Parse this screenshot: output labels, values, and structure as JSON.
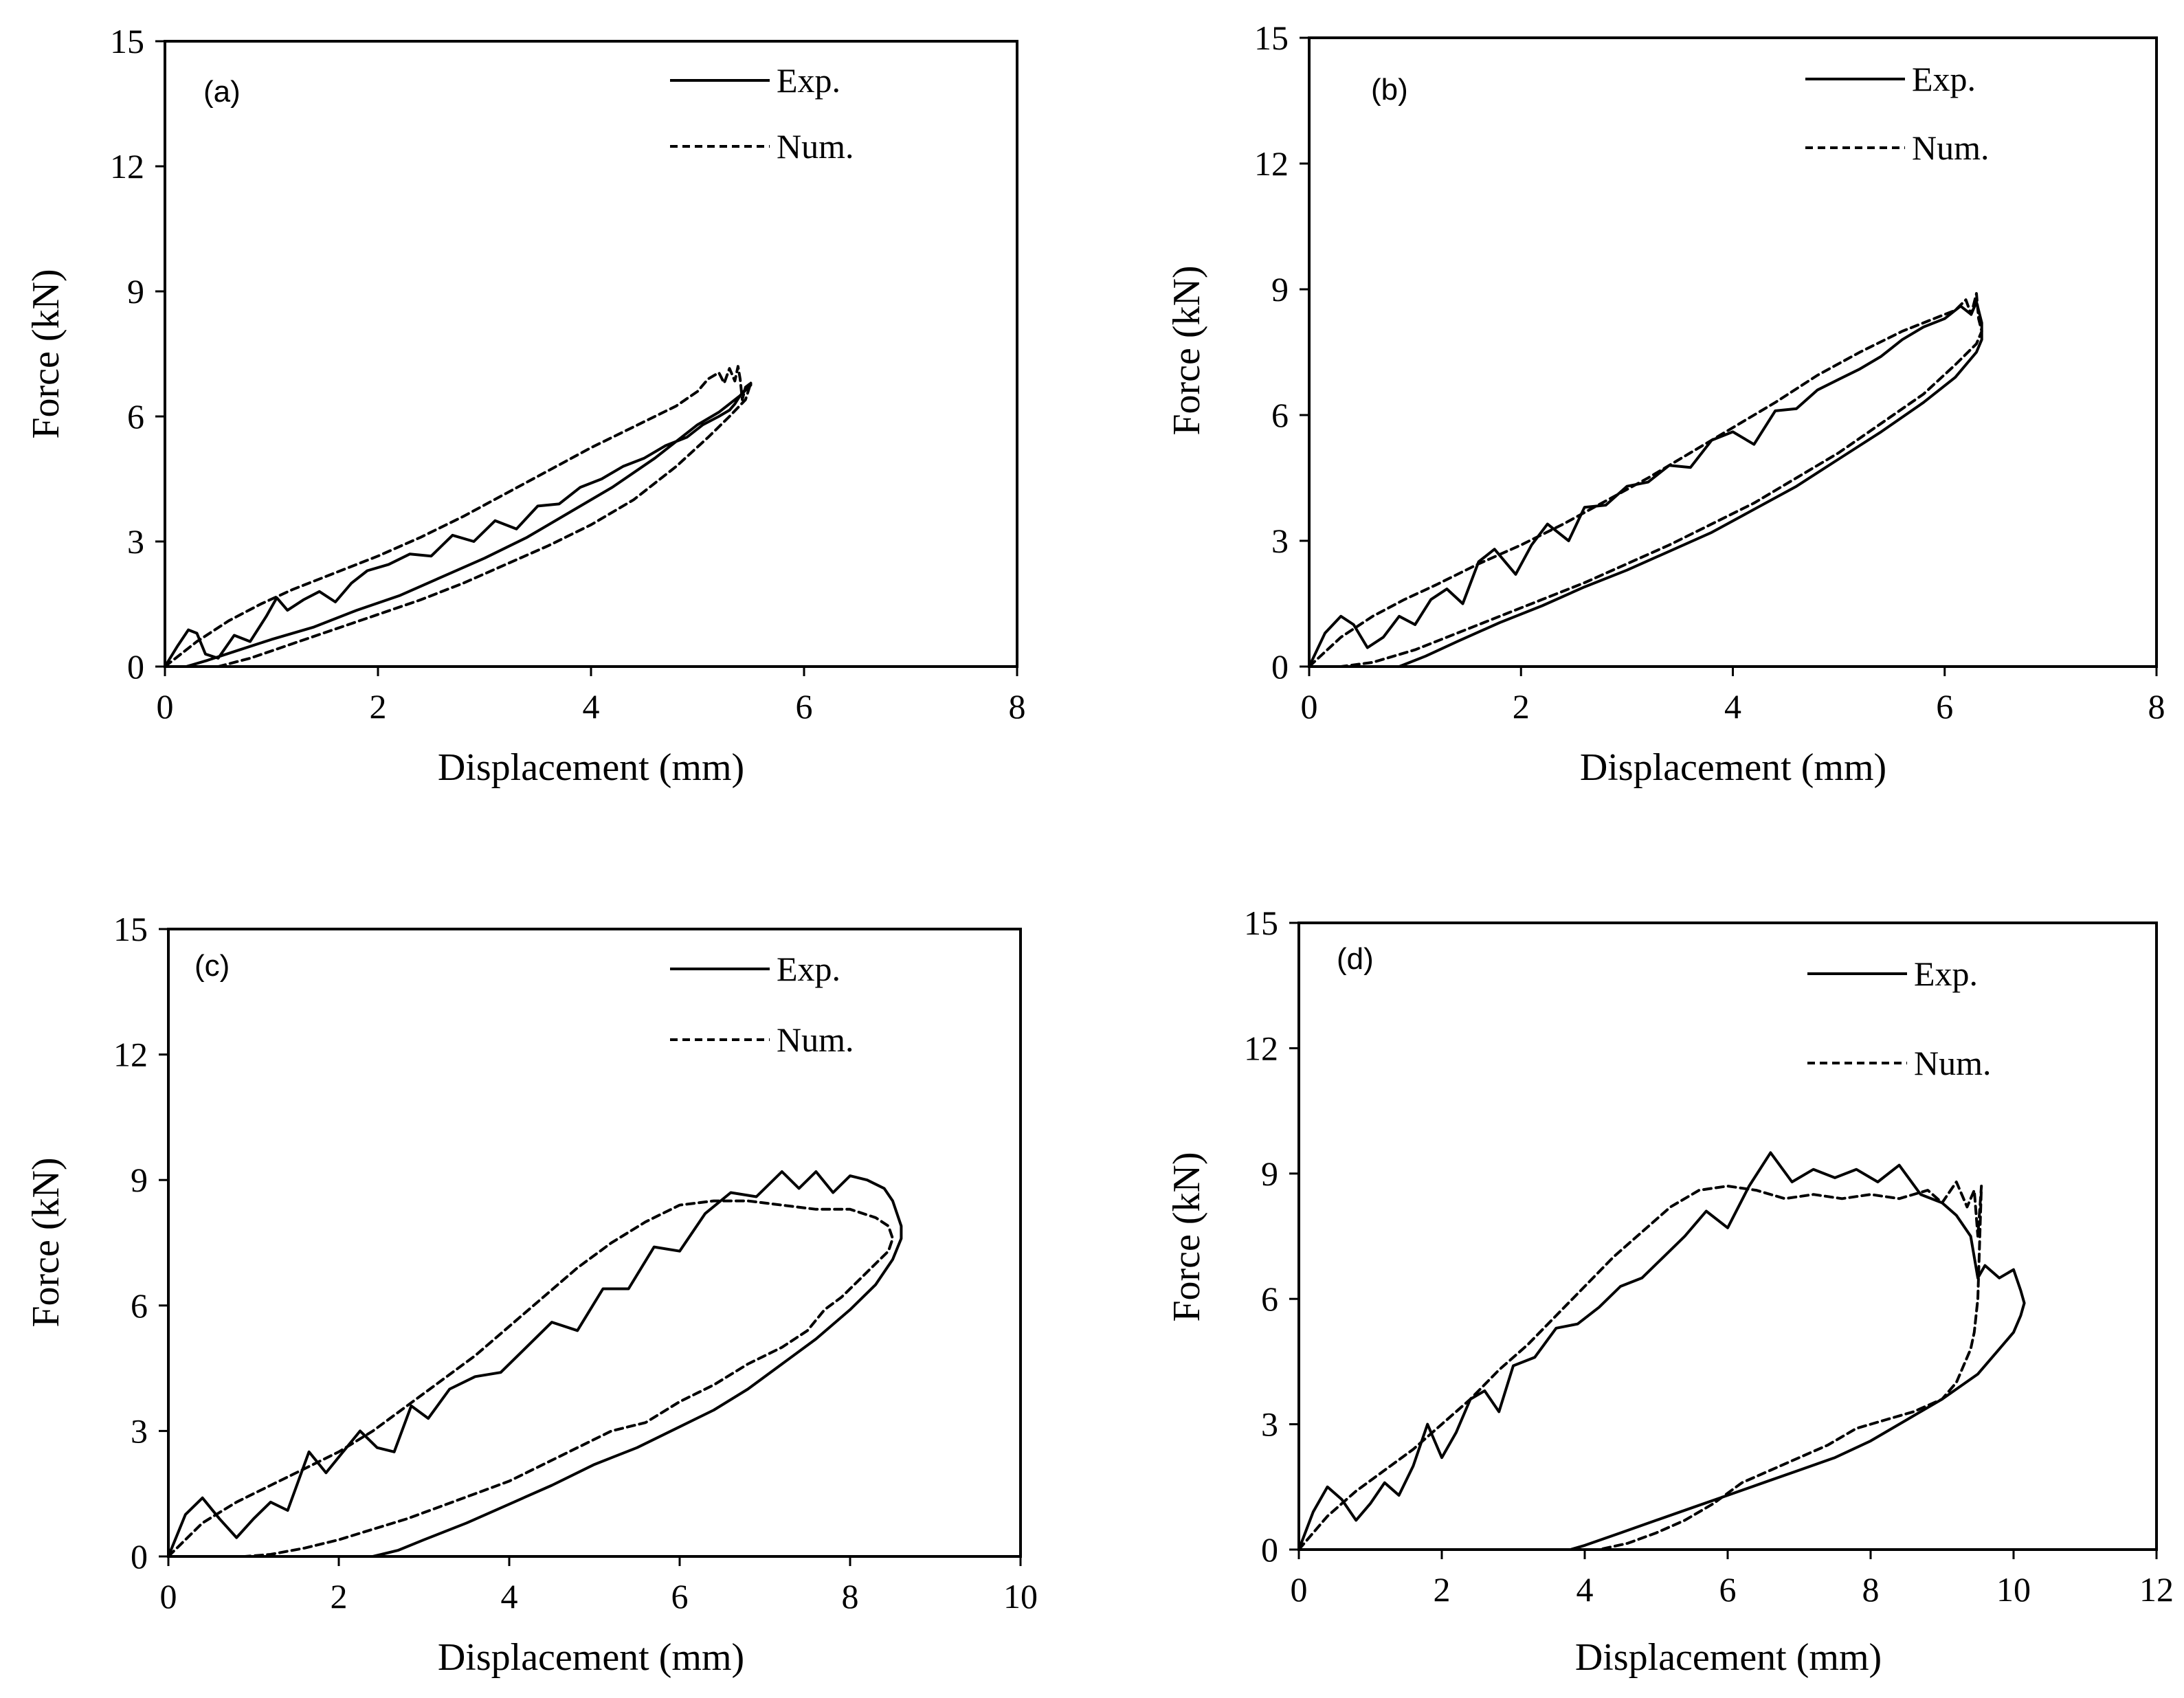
{
  "figure": {
    "line_color": "#000000",
    "background": "#ffffff"
  },
  "chart_data": [
    {
      "id": "a",
      "type": "line",
      "panel_label": "(a)",
      "xlabel": "Displacement (mm)",
      "ylabel": "Force (kN)",
      "xlim": [
        0,
        8
      ],
      "ylim": [
        0,
        15
      ],
      "xticks": [
        0,
        2,
        4,
        6,
        8
      ],
      "yticks": [
        0,
        3,
        6,
        9,
        12,
        15
      ],
      "grid": false,
      "legend": "top-right",
      "series": [
        {
          "name": "Exp.",
          "style": "solid",
          "x": [
            0,
            0.12,
            0.22,
            0.3,
            0.38,
            0.5,
            0.65,
            0.8,
            0.95,
            1.05,
            1.15,
            1.3,
            1.45,
            1.6,
            1.75,
            1.9,
            2.1,
            2.3,
            2.5,
            2.7,
            2.9,
            3.1,
            3.3,
            3.5,
            3.7,
            3.9,
            4.1,
            4.3,
            4.5,
            4.7,
            4.9,
            5.05,
            5.2,
            5.3,
            5.35,
            5.4,
            5.45,
            5.5,
            5.5,
            5.4,
            5.2,
            5.0,
            4.6,
            4.2,
            3.8,
            3.4,
            3.0,
            2.6,
            2.2,
            1.8,
            1.4,
            1.0,
            0.7,
            0.4,
            0.2
          ],
          "y": [
            0,
            0.5,
            0.88,
            0.8,
            0.3,
            0.2,
            0.75,
            0.6,
            1.2,
            1.65,
            1.35,
            1.6,
            1.8,
            1.55,
            2.0,
            2.3,
            2.45,
            2.7,
            2.65,
            3.15,
            3.0,
            3.5,
            3.3,
            3.85,
            3.9,
            4.3,
            4.5,
            4.8,
            5.0,
            5.3,
            5.5,
            5.8,
            6.0,
            6.15,
            6.3,
            6.5,
            6.65,
            6.8,
            6.75,
            6.5,
            6.1,
            5.8,
            5.0,
            4.3,
            3.7,
            3.1,
            2.6,
            2.15,
            1.7,
            1.35,
            0.95,
            0.65,
            0.4,
            0.15,
            0
          ]
        },
        {
          "name": "Num.",
          "style": "dashed",
          "x": [
            0,
            0.3,
            0.6,
            0.9,
            1.2,
            1.6,
            2.0,
            2.4,
            2.8,
            3.2,
            3.6,
            4.0,
            4.4,
            4.8,
            5.0,
            5.1,
            5.2,
            5.25,
            5.3,
            5.35,
            5.38,
            5.4,
            5.42,
            5.45,
            5.5,
            5.45,
            5.3,
            5.1,
            4.8,
            4.4,
            4.0,
            3.6,
            3.2,
            2.8,
            2.4,
            2.0,
            1.6,
            1.2,
            0.8,
            0.5
          ],
          "y": [
            0,
            0.6,
            1.1,
            1.5,
            1.85,
            2.25,
            2.65,
            3.1,
            3.6,
            4.15,
            4.7,
            5.25,
            5.75,
            6.25,
            6.6,
            6.9,
            7.05,
            6.8,
            7.15,
            6.85,
            7.2,
            6.9,
            6.4,
            6.7,
            6.8,
            6.4,
            6.0,
            5.5,
            4.8,
            4.0,
            3.4,
            2.9,
            2.45,
            2.0,
            1.6,
            1.25,
            0.9,
            0.55,
            0.2,
            0
          ]
        }
      ]
    },
    {
      "id": "b",
      "type": "line",
      "panel_label": "(b)",
      "xlabel": "Displacement (mm)",
      "ylabel": "Force (kN)",
      "xlim": [
        0,
        8
      ],
      "ylim": [
        0,
        15
      ],
      "xticks": [
        0,
        2,
        4,
        6,
        8
      ],
      "yticks": [
        0,
        3,
        6,
        9,
        12,
        15
      ],
      "grid": false,
      "legend": "top-right",
      "series": [
        {
          "name": "Exp.",
          "style": "solid",
          "x": [
            0,
            0.15,
            0.3,
            0.42,
            0.55,
            0.7,
            0.85,
            1.0,
            1.15,
            1.3,
            1.45,
            1.6,
            1.75,
            1.95,
            2.1,
            2.25,
            2.45,
            2.6,
            2.8,
            3.0,
            3.2,
            3.4,
            3.6,
            3.8,
            4.0,
            4.2,
            4.4,
            4.6,
            4.8,
            5.0,
            5.2,
            5.4,
            5.6,
            5.8,
            6.0,
            6.15,
            6.25,
            6.3,
            6.35,
            6.35,
            6.3,
            6.1,
            5.8,
            5.4,
            5.0,
            4.6,
            4.2,
            3.8,
            3.4,
            3.0,
            2.6,
            2.2,
            1.8,
            1.4,
            1.1,
            0.85
          ],
          "y": [
            0,
            0.8,
            1.2,
            1.0,
            0.45,
            0.7,
            1.2,
            1.0,
            1.6,
            1.85,
            1.5,
            2.5,
            2.8,
            2.2,
            2.9,
            3.4,
            3.0,
            3.8,
            3.85,
            4.3,
            4.4,
            4.8,
            4.75,
            5.4,
            5.6,
            5.3,
            6.1,
            6.15,
            6.6,
            6.85,
            7.1,
            7.4,
            7.8,
            8.1,
            8.3,
            8.6,
            8.4,
            8.7,
            8.2,
            7.8,
            7.5,
            6.9,
            6.3,
            5.6,
            4.95,
            4.3,
            3.75,
            3.2,
            2.75,
            2.3,
            1.9,
            1.45,
            1.05,
            0.6,
            0.25,
            0
          ]
        },
        {
          "name": "Num.",
          "style": "dashed",
          "x": [
            0,
            0.3,
            0.6,
            0.9,
            1.2,
            1.6,
            2.0,
            2.4,
            2.8,
            3.2,
            3.6,
            4.0,
            4.4,
            4.8,
            5.2,
            5.6,
            5.9,
            6.1,
            6.2,
            6.25,
            6.3,
            6.32,
            6.35,
            6.3,
            6.1,
            5.8,
            5.4,
            5.0,
            4.6,
            4.2,
            3.8,
            3.4,
            3.0,
            2.6,
            2.2,
            1.8,
            1.4,
            1.0,
            0.6,
            0.3
          ],
          "y": [
            0,
            0.7,
            1.2,
            1.6,
            1.95,
            2.45,
            2.9,
            3.4,
            3.95,
            4.5,
            5.1,
            5.7,
            6.3,
            6.95,
            7.5,
            8.0,
            8.3,
            8.5,
            8.75,
            8.4,
            8.9,
            8.3,
            8.0,
            7.7,
            7.2,
            6.5,
            5.8,
            5.1,
            4.5,
            3.9,
            3.4,
            2.9,
            2.45,
            2.0,
            1.6,
            1.2,
            0.8,
            0.4,
            0.1,
            0
          ]
        }
      ]
    },
    {
      "id": "c",
      "type": "line",
      "panel_label": "(c)",
      "xlabel": "Displacement (mm)",
      "ylabel": "Force (kN)",
      "xlim": [
        0,
        10
      ],
      "ylim": [
        0,
        15
      ],
      "xticks": [
        0,
        2,
        4,
        6,
        8,
        10
      ],
      "yticks": [
        0,
        3,
        6,
        9,
        12,
        15
      ],
      "grid": false,
      "legend": "top-right",
      "series": [
        {
          "name": "Exp.",
          "style": "solid",
          "x": [
            0,
            0.2,
            0.4,
            0.6,
            0.8,
            1.0,
            1.2,
            1.4,
            1.65,
            1.85,
            2.05,
            2.25,
            2.45,
            2.65,
            2.85,
            3.05,
            3.3,
            3.6,
            3.9,
            4.2,
            4.5,
            4.8,
            5.1,
            5.4,
            5.7,
            6.0,
            6.3,
            6.6,
            6.9,
            7.2,
            7.4,
            7.6,
            7.8,
            8.0,
            8.2,
            8.4,
            8.5,
            8.55,
            8.6,
            8.6,
            8.5,
            8.3,
            8.0,
            7.6,
            7.2,
            6.8,
            6.4,
            6.0,
            5.5,
            5.0,
            4.5,
            4.0,
            3.5,
            3.0,
            2.7,
            2.4
          ],
          "y": [
            0,
            1.0,
            1.4,
            0.9,
            0.45,
            0.9,
            1.3,
            1.1,
            2.5,
            2.0,
            2.5,
            3.0,
            2.6,
            2.5,
            3.6,
            3.3,
            4.0,
            4.3,
            4.4,
            5.0,
            5.6,
            5.4,
            6.4,
            6.4,
            7.4,
            7.3,
            8.2,
            8.7,
            8.6,
            9.2,
            8.8,
            9.2,
            8.7,
            9.1,
            9.0,
            8.8,
            8.5,
            8.2,
            7.9,
            7.6,
            7.1,
            6.5,
            5.9,
            5.2,
            4.6,
            4.0,
            3.5,
            3.1,
            2.6,
            2.2,
            1.7,
            1.25,
            0.8,
            0.4,
            0.15,
            0
          ]
        },
        {
          "name": "Num.",
          "style": "dashed",
          "x": [
            0,
            0.4,
            0.8,
            1.2,
            1.6,
            2.0,
            2.4,
            2.8,
            3.2,
            3.6,
            4.0,
            4.4,
            4.8,
            5.2,
            5.6,
            6.0,
            6.4,
            6.8,
            7.2,
            7.6,
            8.0,
            8.3,
            8.45,
            8.5,
            8.45,
            8.3,
            8.1,
            7.9,
            7.7,
            7.5,
            7.2,
            6.8,
            6.4,
            6.0,
            5.6,
            5.2,
            4.8,
            4.4,
            4.0,
            3.6,
            3.2,
            2.8,
            2.4,
            2.0,
            1.6,
            1.2,
            0.9
          ],
          "y": [
            0,
            0.8,
            1.3,
            1.7,
            2.1,
            2.5,
            3.0,
            3.6,
            4.2,
            4.8,
            5.5,
            6.2,
            6.9,
            7.5,
            8.0,
            8.4,
            8.5,
            8.5,
            8.4,
            8.3,
            8.3,
            8.1,
            7.9,
            7.6,
            7.3,
            7.0,
            6.6,
            6.2,
            5.9,
            5.4,
            5.0,
            4.6,
            4.1,
            3.7,
            3.2,
            3.0,
            2.6,
            2.2,
            1.8,
            1.5,
            1.2,
            0.9,
            0.65,
            0.4,
            0.2,
            0.05,
            0
          ]
        }
      ]
    },
    {
      "id": "d",
      "type": "line",
      "panel_label": "(d)",
      "xlabel": "Displacement (mm)",
      "ylabel": "Force (kN)",
      "xlim": [
        0,
        12
      ],
      "ylim": [
        0,
        15
      ],
      "xticks": [
        0,
        2,
        4,
        6,
        8,
        10,
        12
      ],
      "yticks": [
        0,
        3,
        6,
        9,
        12,
        15
      ],
      "grid": false,
      "legend": "top-right",
      "series": [
        {
          "name": "Exp.",
          "style": "solid",
          "x": [
            0,
            0.2,
            0.4,
            0.6,
            0.8,
            1.0,
            1.2,
            1.4,
            1.6,
            1.8,
            2.0,
            2.2,
            2.4,
            2.6,
            2.8,
            3.0,
            3.3,
            3.6,
            3.9,
            4.2,
            4.5,
            4.8,
            5.1,
            5.4,
            5.7,
            6.0,
            6.3,
            6.6,
            6.9,
            7.2,
            7.5,
            7.8,
            8.1,
            8.4,
            8.7,
            9.0,
            9.2,
            9.4,
            9.5,
            9.6,
            9.8,
            10.0,
            10.1,
            10.15,
            10.1,
            10.0,
            9.8,
            9.5,
            9.0,
            8.5,
            8.0,
            7.5,
            7.0,
            6.5,
            6.0,
            5.5,
            5.0,
            4.5,
            4.0,
            3.8
          ],
          "y": [
            0,
            0.9,
            1.5,
            1.2,
            0.7,
            1.1,
            1.6,
            1.3,
            2.0,
            3.0,
            2.2,
            2.8,
            3.6,
            3.8,
            3.3,
            4.4,
            4.6,
            5.3,
            5.4,
            5.8,
            6.3,
            6.5,
            7.0,
            7.5,
            8.1,
            7.7,
            8.7,
            9.5,
            8.8,
            9.1,
            8.9,
            9.1,
            8.8,
            9.2,
            8.5,
            8.3,
            8.0,
            7.5,
            6.5,
            6.8,
            6.5,
            6.7,
            6.2,
            5.9,
            5.6,
            5.2,
            4.8,
            4.2,
            3.6,
            3.1,
            2.6,
            2.2,
            1.9,
            1.6,
            1.3,
            1.0,
            0.7,
            0.4,
            0.1,
            0
          ]
        },
        {
          "name": "Num.",
          "style": "dashed",
          "x": [
            0,
            0.4,
            0.8,
            1.2,
            1.6,
            2.0,
            2.4,
            2.8,
            3.2,
            3.6,
            4.0,
            4.4,
            4.8,
            5.2,
            5.6,
            6.0,
            6.4,
            6.8,
            7.2,
            7.6,
            8.0,
            8.4,
            8.8,
            9.0,
            9.2,
            9.35,
            9.45,
            9.5,
            9.55,
            9.5,
            9.45,
            9.4,
            9.2,
            9.0,
            8.6,
            8.2,
            7.8,
            7.4,
            7.0,
            6.6,
            6.2,
            5.8,
            5.4,
            5.0,
            4.6,
            4.2
          ],
          "y": [
            0,
            0.8,
            1.4,
            1.9,
            2.4,
            3.0,
            3.6,
            4.3,
            4.9,
            5.6,
            6.3,
            7.0,
            7.6,
            8.2,
            8.6,
            8.7,
            8.6,
            8.4,
            8.5,
            8.4,
            8.5,
            8.4,
            8.6,
            8.3,
            8.8,
            8.2,
            8.6,
            7.5,
            8.7,
            6.0,
            5.2,
            4.8,
            4.0,
            3.6,
            3.3,
            3.1,
            2.9,
            2.5,
            2.2,
            1.9,
            1.6,
            1.1,
            0.7,
            0.4,
            0.15,
            0
          ]
        }
      ]
    }
  ]
}
